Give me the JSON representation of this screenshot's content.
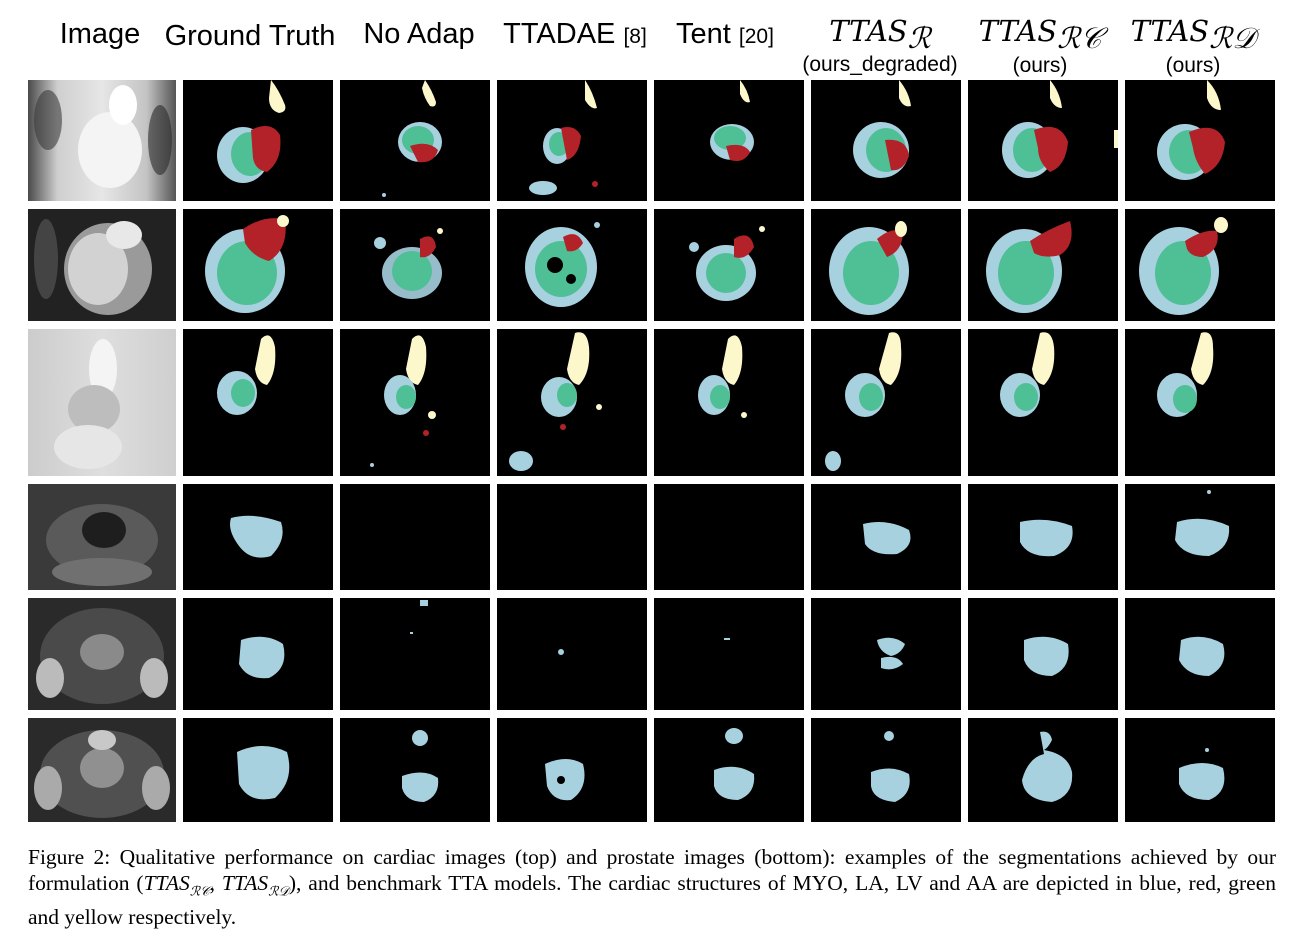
{
  "colors": {
    "myo": "#a8d1e0",
    "la": "#b22228",
    "lv": "#4fbf96",
    "aa": "#fdf8cc"
  },
  "headers": {
    "image": "Image",
    "ground_truth": "Ground Truth",
    "no_adap": "No Adap",
    "ttadae": "TTADAE",
    "ttadae_ref": "[8]",
    "tent": "Tent",
    "tent_ref": "[20]",
    "ttas_r": "TTAS",
    "ttas_r_sub": "ℛ",
    "ttas_r_note": "(ours_degraded)",
    "ttas_rc": "TTAS",
    "ttas_rc_sub": "ℛ𝒞",
    "ttas_rc_note": "(ours)",
    "ttas_rd": "TTAS",
    "ttas_rd_sub": "ℛ𝒟",
    "ttas_rd_note": "(ours)"
  },
  "caption": {
    "part1": "Figure 2: Qualitative performance on cardiac images (top) and prostate images (bottom): examples of the segmentations achieved by our formulation (",
    "math": "TTAS",
    "sub1": "ℛ𝒞",
    "sep": ", ",
    "sub2": "ℛ𝒟",
    "part2": "), and benchmark TTA models. The cardiac structures of MYO, LA, LV and AA are depicted in blue, red, green and yellow respectively."
  }
}
